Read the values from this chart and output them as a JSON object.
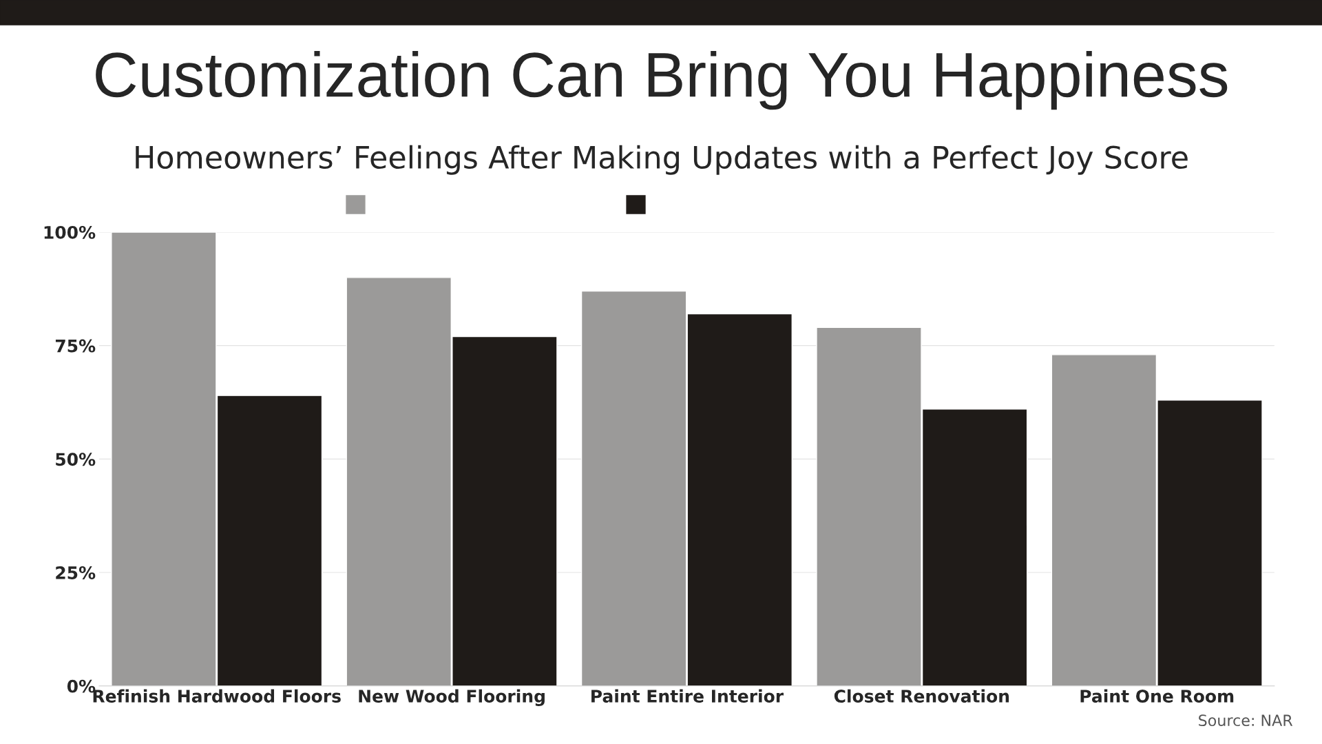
{
  "chart_data": {
    "type": "bar",
    "title": "Customization Can Bring You Happiness",
    "subtitle": "Homeowners’ Feelings After Making Updates with a Perfect Joy Score",
    "categories": [
      "Refinish Hardwood Floors",
      "New Wood Flooring",
      "Paint Entire Interior",
      "Closet Renovation",
      "Paint One Room"
    ],
    "series": [
      {
        "color": "#9b9a99",
        "values": [
          100,
          90,
          87,
          79,
          73
        ]
      },
      {
        "color": "#1f1b18",
        "values": [
          64,
          77,
          82,
          61,
          63
        ]
      }
    ],
    "ylim": [
      0,
      100
    ],
    "yticks": [
      {
        "value": 0,
        "label": "0%"
      },
      {
        "value": 25,
        "label": "25%"
      },
      {
        "value": 50,
        "label": "50%"
      },
      {
        "value": 75,
        "label": "75%"
      },
      {
        "value": 100,
        "label": "100%"
      }
    ],
    "grid": "y",
    "annotations": [
      "Source: NAR"
    ]
  }
}
